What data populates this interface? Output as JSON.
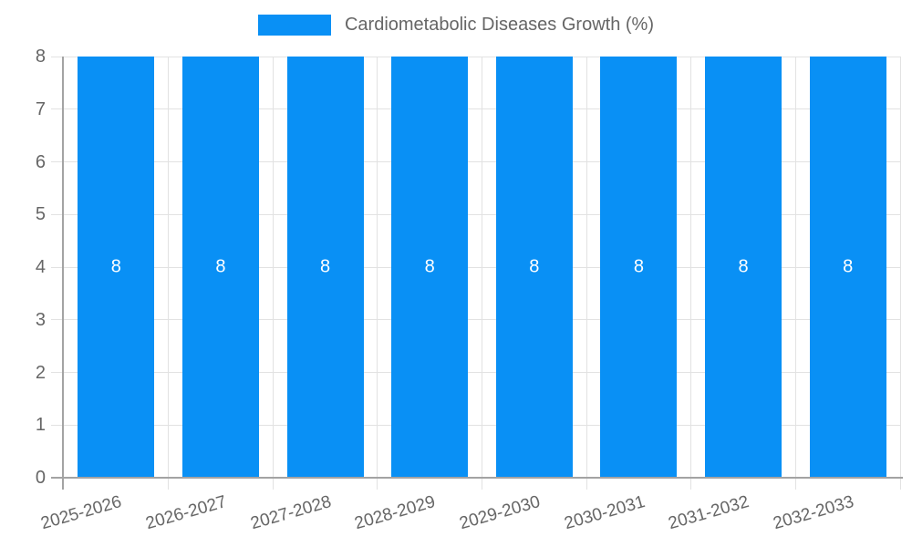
{
  "legend": {
    "label": "Cardiometabolic Diseases Growth (%)"
  },
  "chart_data": {
    "type": "bar",
    "title": "Cardiometabolic Diseases Growth (%)",
    "categories": [
      "2025-2026",
      "2026-2027",
      "2027-2028",
      "2028-2029",
      "2029-2030",
      "2030-2031",
      "2031-2032",
      "2032-2033"
    ],
    "values": [
      8,
      8,
      8,
      8,
      8,
      8,
      8,
      8
    ],
    "series": [
      {
        "name": "Cardiometabolic Diseases Growth (%)",
        "values": [
          8,
          8,
          8,
          8,
          8,
          8,
          8,
          8
        ]
      }
    ],
    "xlabel": "",
    "ylabel": "",
    "ylim": [
      0,
      8
    ],
    "yticks": [
      0,
      1,
      2,
      3,
      4,
      5,
      6,
      7,
      8
    ],
    "grid": true,
    "legend_position": "top",
    "bar_color": "#0990f5",
    "value_label_color": "#ffffff",
    "grid_color": "#e2e2e2",
    "tick_color": "#d9d9d9",
    "axis_color": "#a3a3a3",
    "tick_label_color": "#666666"
  }
}
